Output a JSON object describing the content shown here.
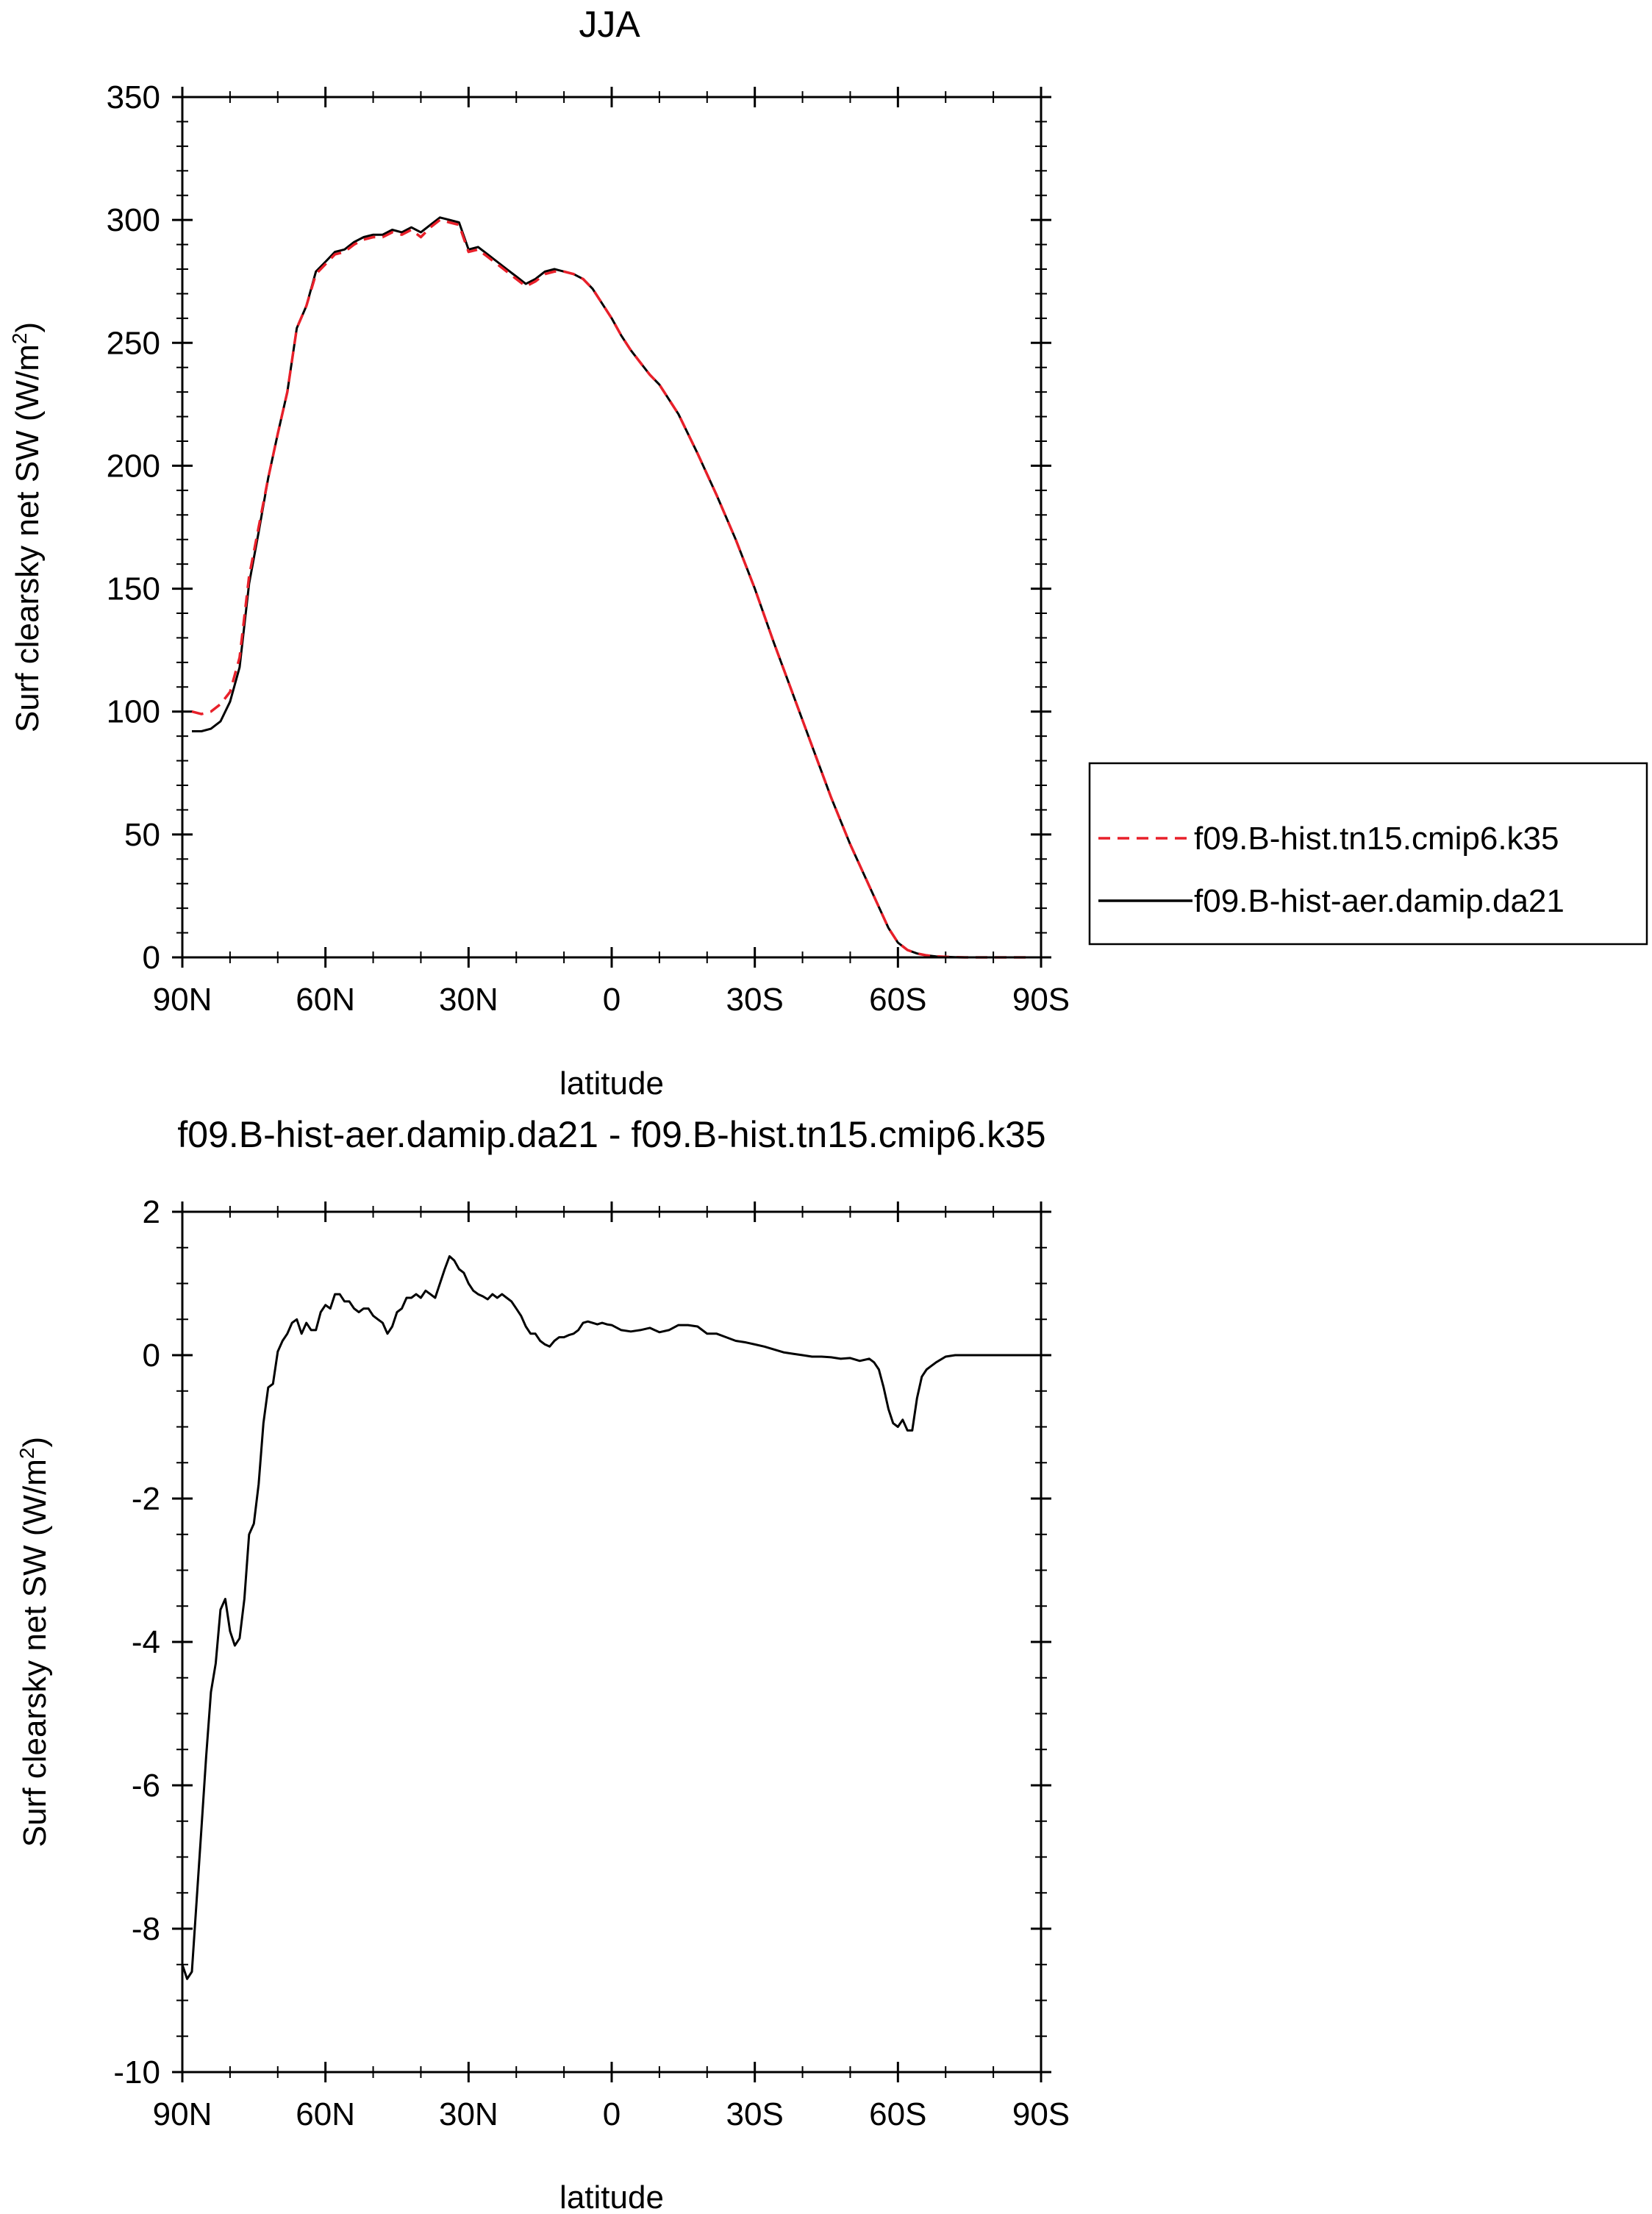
{
  "chart_data": [
    {
      "type": "line",
      "title": "JJA",
      "xlabel": "latitude",
      "ylabel_main": "Surf clearsky net SW (W/m",
      "ylabel_sup": "2",
      "ylabel_close": ")",
      "xlim": [
        90,
        -90
      ],
      "ylim": [
        0,
        350
      ],
      "x_ticks": [
        90,
        60,
        30,
        0,
        -30,
        -60,
        -90
      ],
      "x_tick_labels": [
        "90N",
        "60N",
        "30N",
        "0",
        "30S",
        "60S",
        "90S"
      ],
      "y_ticks": [
        0,
        50,
        100,
        150,
        200,
        250,
        300,
        350
      ],
      "y_tick_labels": [
        "0",
        "50",
        "100",
        "150",
        "200",
        "250",
        "300",
        "350"
      ],
      "grid": false,
      "legend_position": "right",
      "series": [
        {
          "name": "f09.B-hist.tn15.cmip6.k35",
          "color": "#e8202a",
          "dash": "dashed",
          "x": [
            88,
            86,
            84,
            82,
            80,
            78,
            76,
            74,
            72,
            70,
            68,
            66,
            64,
            62,
            60,
            58,
            56,
            54,
            52,
            50,
            48,
            46,
            44,
            42,
            40,
            38,
            36,
            34,
            32,
            30,
            28,
            26,
            24,
            22,
            20,
            18,
            16,
            14,
            12,
            10,
            8,
            6,
            4,
            2,
            0,
            -2,
            -4,
            -6,
            -8,
            -10,
            -14,
            -18,
            -22,
            -26,
            -30,
            -34,
            -38,
            -42,
            -46,
            -50,
            -54,
            -58,
            -60,
            -62,
            -64,
            -66,
            -68,
            -70,
            -72,
            -74,
            -76,
            -80,
            -84,
            -88
          ],
          "y": [
            100,
            99,
            100,
            103,
            108,
            122,
            155,
            175,
            195,
            213,
            230,
            256,
            265,
            278,
            282,
            286,
            287,
            290,
            292,
            293,
            293,
            295,
            294,
            296,
            293,
            297,
            300,
            299,
            298,
            287,
            288,
            285,
            282,
            279,
            276,
            273,
            275,
            278,
            279,
            279,
            278,
            276,
            272,
            266,
            260,
            253,
            247,
            242,
            237,
            233,
            221,
            205,
            188,
            170,
            150,
            128,
            107,
            86,
            65,
            46,
            29,
            12,
            6,
            3,
            1.6,
            0.8,
            0.4,
            0.2,
            0.1,
            0,
            0,
            0,
            0,
            0
          ]
        },
        {
          "name": "f09.B-hist-aer.damip.da21",
          "color": "#000000",
          "dash": "solid",
          "x": [
            88,
            86,
            84,
            82,
            80,
            78,
            76,
            74,
            72,
            70,
            68,
            66,
            64,
            62,
            60,
            58,
            56,
            54,
            52,
            50,
            48,
            46,
            44,
            42,
            40,
            38,
            36,
            34,
            32,
            30,
            28,
            26,
            24,
            22,
            20,
            18,
            16,
            14,
            12,
            10,
            8,
            6,
            4,
            2,
            0,
            -2,
            -4,
            -6,
            -8,
            -10,
            -14,
            -18,
            -22,
            -26,
            -30,
            -34,
            -38,
            -42,
            -46,
            -50,
            -54,
            -58,
            -60,
            -62,
            -64,
            -66,
            -68,
            -70,
            -72,
            -74,
            -76,
            -80,
            -84,
            -88
          ],
          "y": [
            92,
            92,
            93,
            96,
            104,
            118,
            152,
            173,
            195,
            213,
            230,
            256,
            265,
            279,
            283,
            287,
            288,
            291,
            293,
            294,
            294,
            296,
            295,
            297,
            295,
            298,
            301,
            300,
            299,
            288,
            289,
            286,
            283,
            280,
            277,
            274,
            276,
            279,
            280,
            279,
            278,
            276,
            272,
            266,
            260,
            253,
            247,
            242,
            237,
            233,
            221,
            205,
            188,
            170,
            150,
            128,
            107,
            86,
            65,
            46,
            29,
            12,
            6,
            3,
            1.6,
            0.8,
            0.4,
            0.2,
            0.1,
            0,
            0,
            0,
            0,
            0
          ]
        }
      ]
    },
    {
      "type": "line",
      "title": "f09.B-hist-aer.damip.da21 - f09.B-hist.tn15.cmip6.k35",
      "xlabel": "latitude",
      "ylabel_main": "Surf clearsky net SW (W/m",
      "ylabel_sup": "2",
      "ylabel_close": ")",
      "xlim": [
        90,
        -90
      ],
      "ylim": [
        -10,
        2
      ],
      "x_ticks": [
        90,
        60,
        30,
        0,
        -30,
        -60,
        -90
      ],
      "x_tick_labels": [
        "90N",
        "60N",
        "30N",
        "0",
        "30S",
        "60S",
        "90S"
      ],
      "y_ticks": [
        -10,
        -8,
        -6,
        -4,
        -2,
        0,
        2
      ],
      "y_tick_labels": [
        "-10",
        "-8",
        "-6",
        "-4",
        "-2",
        "0",
        "2"
      ],
      "grid": false,
      "series": [
        {
          "color": "#000000",
          "dash": "solid",
          "x": [
            90,
            89,
            88,
            87,
            86,
            85,
            84,
            83,
            82,
            81,
            80,
            79,
            78,
            77,
            76,
            75,
            74,
            73,
            72,
            71,
            70,
            69,
            68,
            67,
            66,
            65,
            64,
            63,
            62,
            61,
            60,
            59,
            58,
            57,
            56,
            55,
            54,
            53,
            52,
            51,
            50,
            49,
            48,
            47,
            46,
            45,
            44,
            43,
            42,
            41,
            40,
            39,
            38,
            37,
            36,
            35,
            34,
            33,
            32,
            31,
            30,
            29,
            28,
            27,
            26,
            25,
            24,
            23,
            22,
            21,
            20,
            19,
            18,
            17,
            16,
            15,
            14,
            13,
            12,
            11,
            10,
            9,
            8,
            7,
            6,
            5,
            4,
            3,
            2,
            1,
            0,
            -2,
            -4,
            -6,
            -8,
            -10,
            -12,
            -14,
            -16,
            -18,
            -20,
            -22,
            -24,
            -26,
            -28,
            -30,
            -32,
            -34,
            -36,
            -38,
            -40,
            -42,
            -44,
            -46,
            -48,
            -50,
            -52,
            -54,
            -55,
            -56,
            -57,
            -58,
            -59,
            -60,
            -61,
            -62,
            -63,
            -64,
            -65,
            -66,
            -67,
            -68,
            -70,
            -72,
            -75,
            -80,
            -85,
            -90
          ],
          "y": [
            -8.5,
            -8.7,
            -8.6,
            -7.6,
            -6.6,
            -5.6,
            -4.7,
            -4.3,
            -3.55,
            -3.4,
            -3.85,
            -4.05,
            -3.95,
            -3.4,
            -2.5,
            -2.35,
            -1.8,
            -0.95,
            -0.45,
            -0.4,
            0.05,
            0.2,
            0.3,
            0.45,
            0.5,
            0.3,
            0.45,
            0.35,
            0.35,
            0.6,
            0.7,
            0.65,
            0.85,
            0.85,
            0.75,
            0.75,
            0.65,
            0.6,
            0.65,
            0.65,
            0.55,
            0.5,
            0.45,
            0.3,
            0.4,
            0.6,
            0.65,
            0.8,
            0.8,
            0.85,
            0.8,
            0.9,
            0.85,
            0.8,
            1.0,
            1.2,
            1.38,
            1.32,
            1.2,
            1.15,
            1.0,
            0.9,
            0.85,
            0.82,
            0.78,
            0.85,
            0.8,
            0.85,
            0.8,
            0.75,
            0.65,
            0.55,
            0.4,
            0.3,
            0.3,
            0.2,
            0.15,
            0.12,
            0.2,
            0.25,
            0.25,
            0.28,
            0.3,
            0.35,
            0.45,
            0.47,
            0.45,
            0.43,
            0.45,
            0.43,
            0.42,
            0.35,
            0.33,
            0.35,
            0.38,
            0.32,
            0.35,
            0.42,
            0.42,
            0.4,
            0.3,
            0.3,
            0.25,
            0.2,
            0.18,
            0.15,
            0.12,
            0.08,
            0.04,
            0.02,
            0.0,
            -0.02,
            -0.02,
            -0.03,
            -0.05,
            -0.04,
            -0.08,
            -0.05,
            -0.1,
            -0.2,
            -0.45,
            -0.75,
            -0.95,
            -1.0,
            -0.9,
            -1.05,
            -1.05,
            -0.6,
            -0.3,
            -0.2,
            -0.15,
            -0.1,
            -0.02,
            0.0,
            0.0,
            0.0,
            0.0,
            0.0
          ]
        }
      ]
    }
  ]
}
